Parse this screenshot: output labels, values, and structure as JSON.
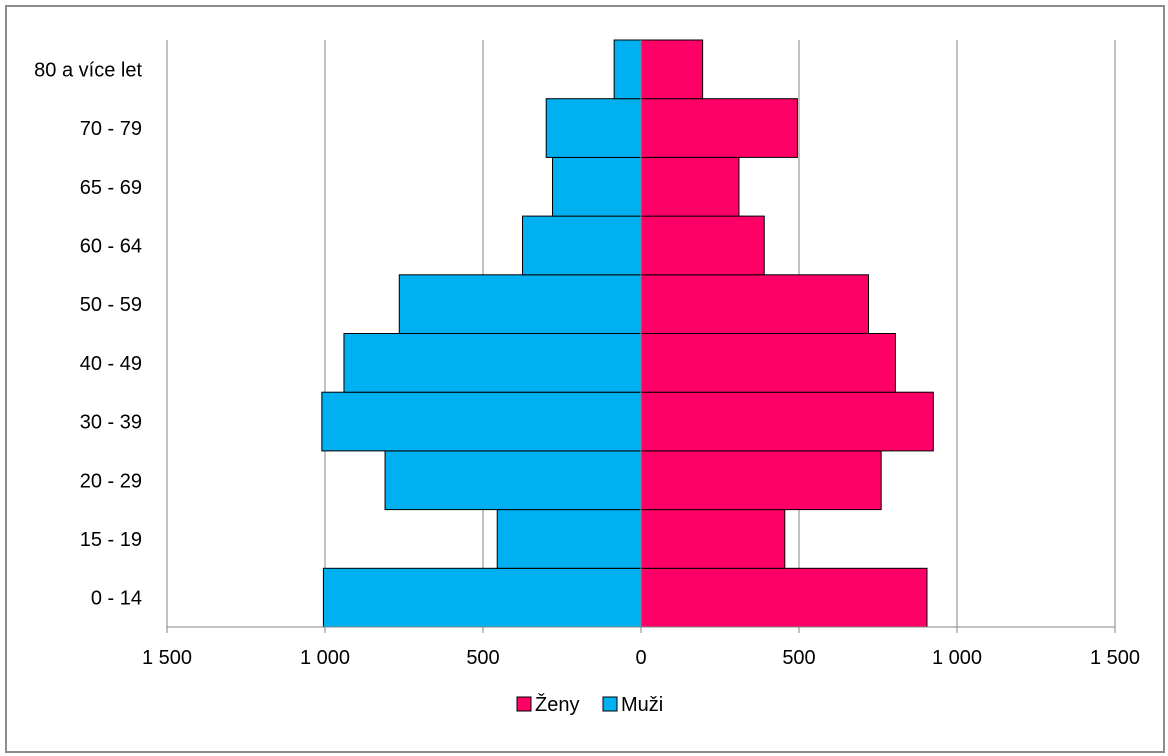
{
  "chart_data": {
    "type": "bar",
    "orientation": "horizontal",
    "stacked_diverging": true,
    "categories": [
      "0 - 14",
      "15 - 19",
      "20 - 29",
      "30 - 39",
      "40 - 49",
      "50 - 59",
      "60 - 64",
      "65 - 69",
      "70 - 79",
      "80 a více let"
    ],
    "series": [
      {
        "name": "Ženy",
        "color": "#ff0066",
        "values": [
          905,
          455,
          760,
          925,
          805,
          720,
          390,
          310,
          495,
          195
        ]
      },
      {
        "name": "Muži",
        "color": "#00b0f0",
        "values": [
          1005,
          455,
          810,
          1010,
          940,
          765,
          375,
          280,
          300,
          85
        ]
      }
    ],
    "x_ticks": [
      "1 500",
      "1 000",
      "500",
      "0",
      "500",
      "1 000",
      "1 500"
    ],
    "xlim": [
      -1500,
      1500
    ],
    "grid": true,
    "legend": {
      "position": "bottom",
      "entries": [
        "Ženy",
        "Muži"
      ]
    },
    "title": "",
    "xlabel": "",
    "ylabel": ""
  }
}
